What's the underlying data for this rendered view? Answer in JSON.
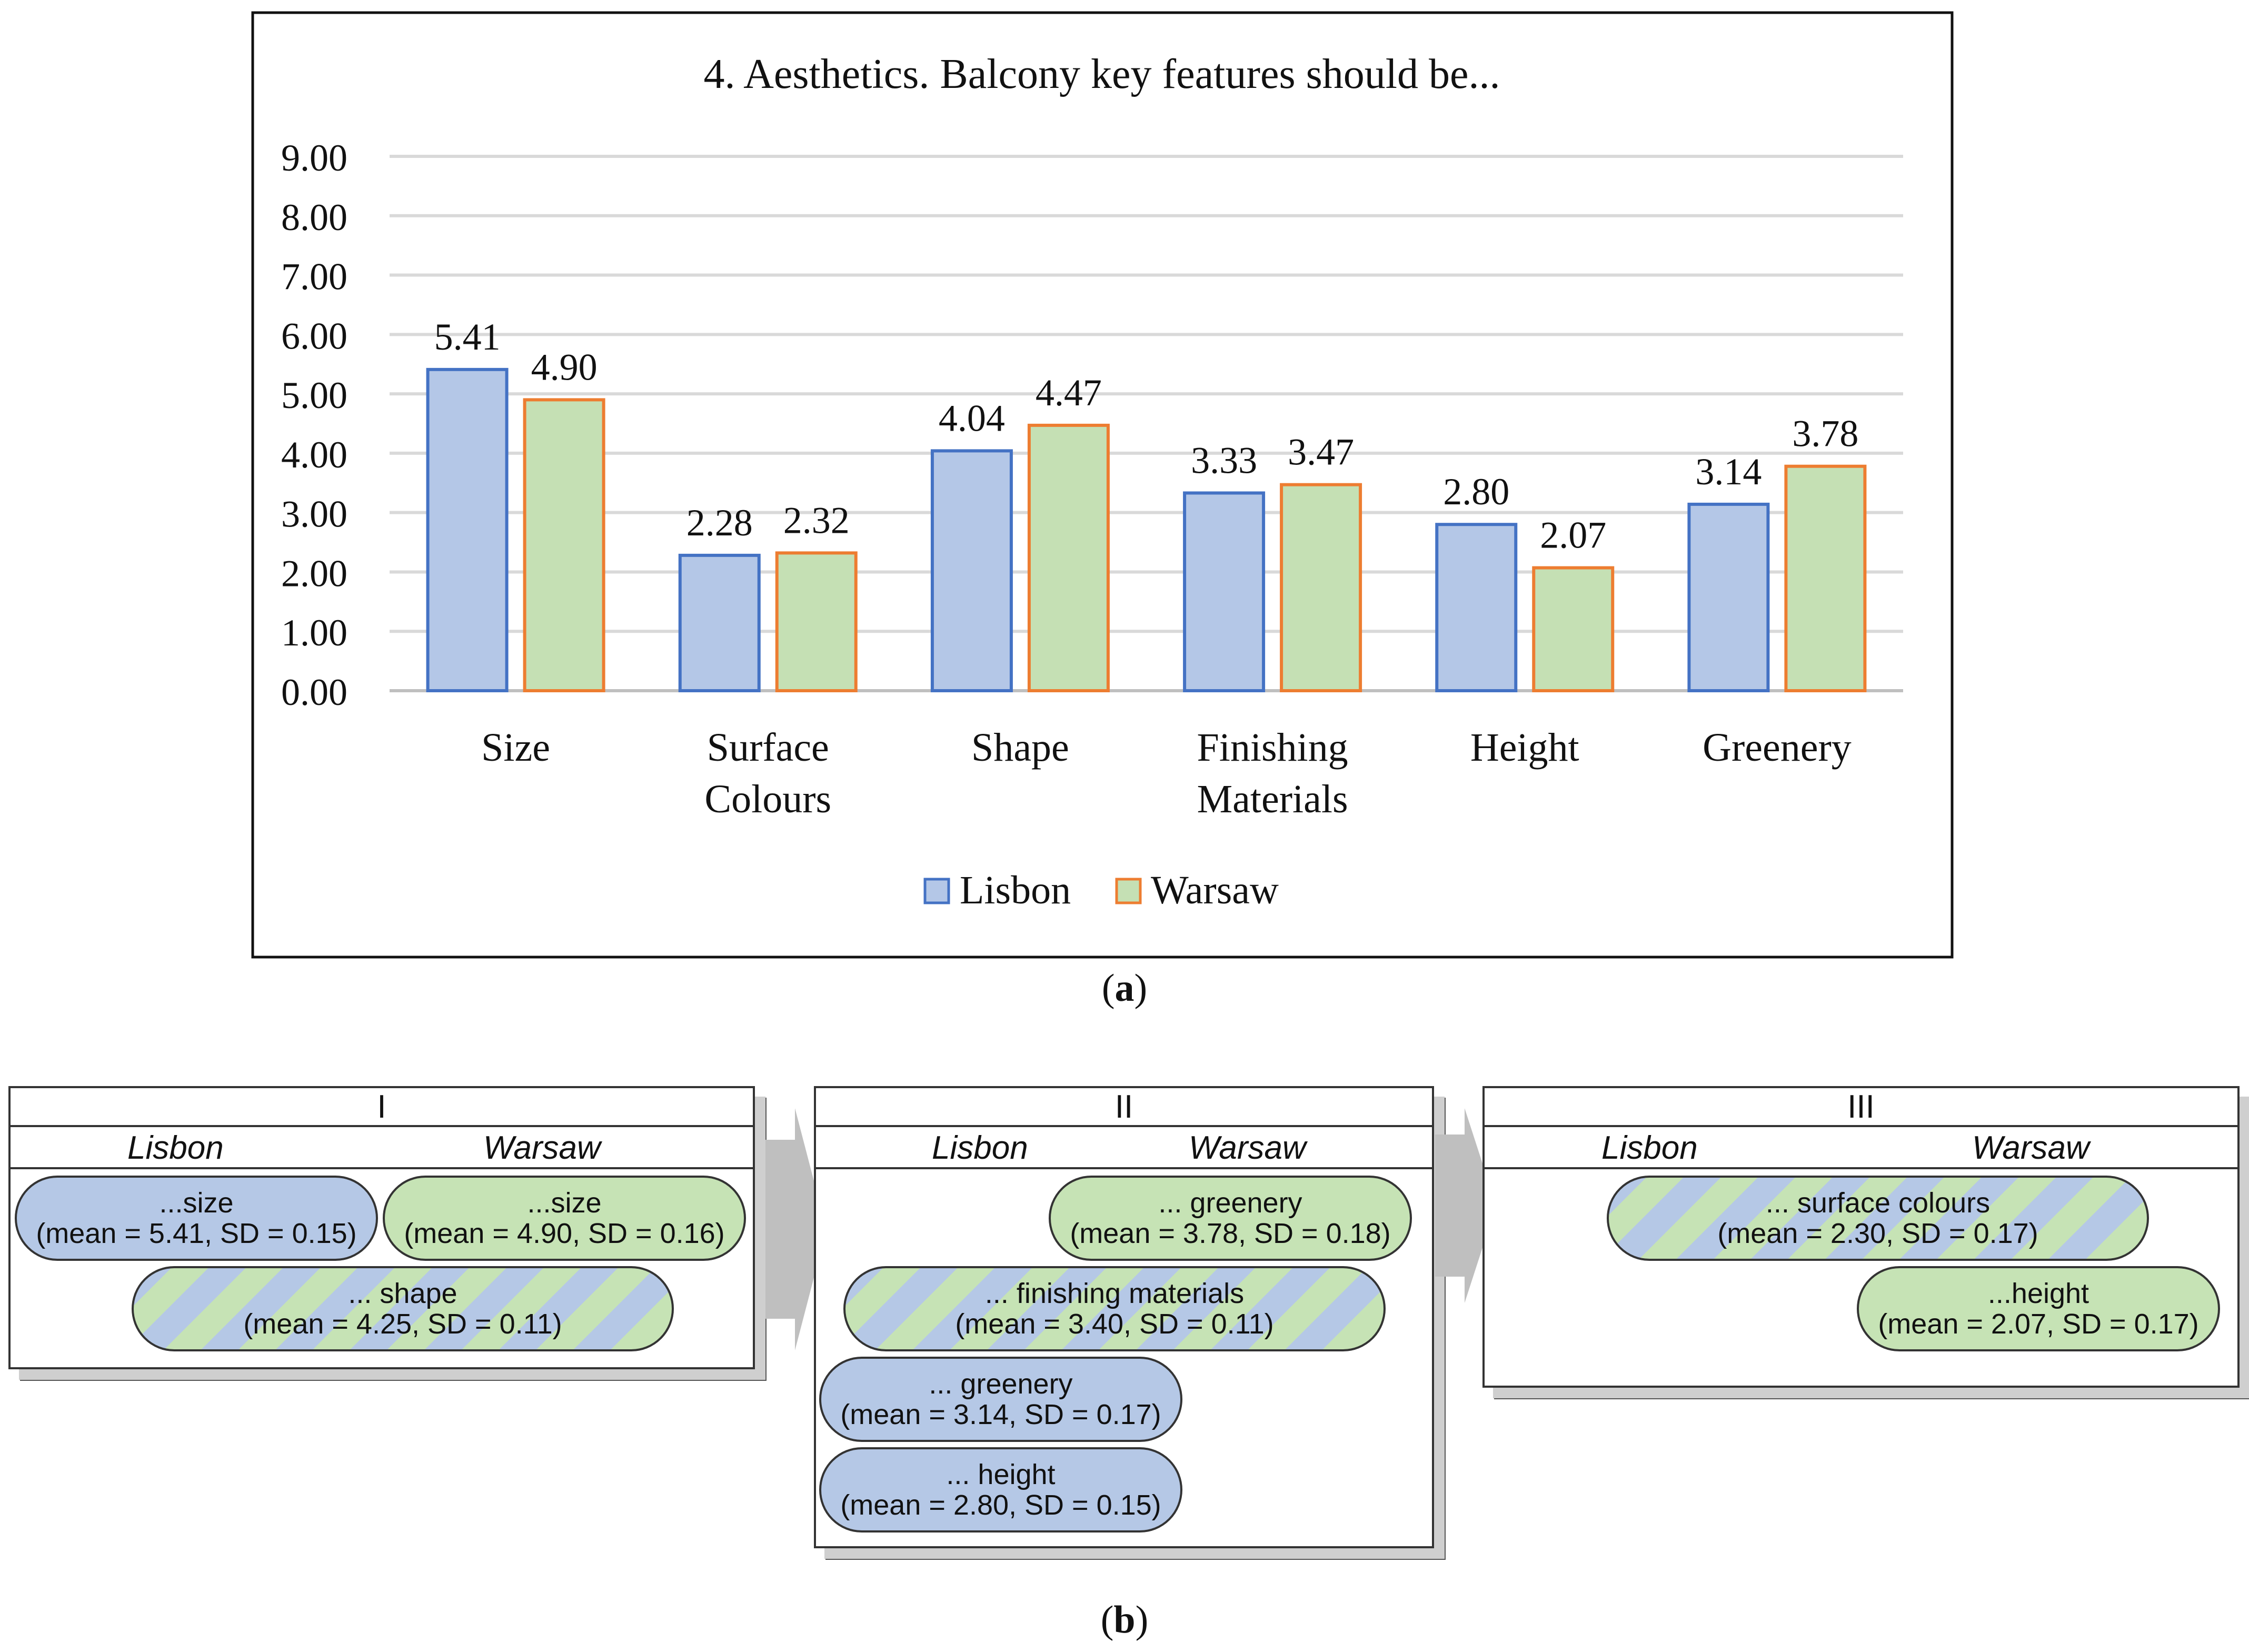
{
  "chart_data": {
    "type": "bar",
    "title": "4. Aesthetics. Balcony key features should be...",
    "categories": [
      [
        "Size"
      ],
      [
        "Surface",
        "Colours"
      ],
      [
        "Shape"
      ],
      [
        "Finishing",
        "Materials"
      ],
      [
        "Height"
      ],
      [
        "Greenery"
      ]
    ],
    "series": [
      {
        "name": "Lisbon",
        "values": [
          5.41,
          2.28,
          4.04,
          3.33,
          2.8,
          3.14
        ],
        "fill": "#b4c7e7",
        "stroke": "#4472c4"
      },
      {
        "name": "Warsaw",
        "values": [
          4.9,
          2.32,
          4.47,
          3.47,
          2.07,
          3.78
        ],
        "fill": "#c5e0b4",
        "stroke": "#ed7d31"
      }
    ],
    "ylim": [
      0,
      9
    ],
    "yticks": [
      "0.00",
      "1.00",
      "2.00",
      "3.00",
      "4.00",
      "5.00",
      "6.00",
      "7.00",
      "8.00",
      "9.00"
    ],
    "grid": true,
    "legend_position": "bottom",
    "xlabel": "",
    "ylabel": ""
  },
  "captions": {
    "a": "(a)",
    "a_letter": "a",
    "b": "(b)",
    "b_letter": "b"
  },
  "panels": [
    {
      "title": "I",
      "col_lisbon": "Lisbon",
      "col_warsaw": "Warsaw",
      "items": [
        {
          "kind": "lisbon",
          "line1": "...size",
          "line2": "(mean = 5.41, SD = 0.15)"
        },
        {
          "kind": "warsaw",
          "line1": "...size",
          "line2": "(mean = 4.90, SD = 0.16)"
        },
        {
          "kind": "both",
          "line1": "... shape",
          "line2": "(mean = 4.25, SD = 0.11)"
        }
      ]
    },
    {
      "title": "II",
      "col_lisbon": "Lisbon",
      "col_warsaw": "Warsaw",
      "items": [
        {
          "kind": "warsaw",
          "line1": "... greenery",
          "line2": "(mean = 3.78, SD = 0.18)"
        },
        {
          "kind": "both",
          "line1": "... finishing materials",
          "line2": "(mean = 3.40, SD = 0.11)"
        },
        {
          "kind": "lisbon",
          "line1": "... greenery",
          "line2": "(mean = 3.14, SD = 0.17)"
        },
        {
          "kind": "lisbon",
          "line1": "... height",
          "line2": "(mean = 2.80, SD = 0.15)"
        }
      ]
    },
    {
      "title": "III",
      "col_lisbon": "Lisbon",
      "col_warsaw": "Warsaw",
      "items": [
        {
          "kind": "both",
          "line1": "... surface colours",
          "line2": "(mean = 2.30, SD = 0.17)"
        },
        {
          "kind": "warsaw",
          "line1": "...height",
          "line2": "(mean = 2.07, SD = 0.17)"
        }
      ]
    }
  ],
  "colors": {
    "lisbon_fill": "#b4c7e7",
    "lisbon_stroke": "#4472c4",
    "warsaw_fill": "#c5e0b4",
    "warsaw_stroke": "#ed7d31",
    "grid": "#d9d9d9",
    "arrow": "#bfbfbf"
  }
}
